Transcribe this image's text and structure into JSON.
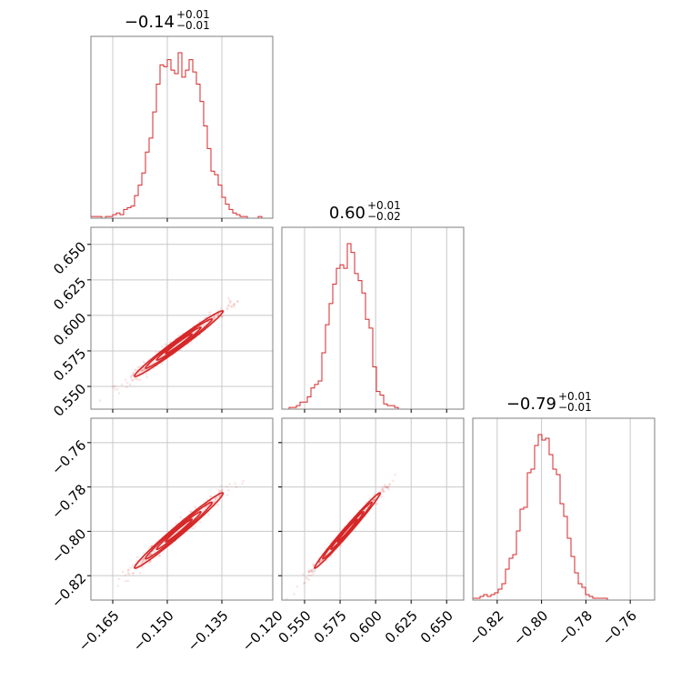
{
  "chart_data": {
    "type": "corner",
    "parameters": [
      {
        "title": {
          "value": "−0.14",
          "upper": "+0.01",
          "lower": "−0.01"
        },
        "range": [
          -0.171,
          -0.121
        ],
        "ticks": [
          -0.165,
          -0.15,
          -0.135,
          -0.12
        ],
        "tick_labels": [
          "−0.165",
          "−0.150",
          "−0.135",
          "−0.120"
        ],
        "histogram": {
          "bin_start": -0.171,
          "bin_width": 0.001,
          "counts": [
            1,
            1,
            1,
            0,
            1,
            1,
            2,
            3,
            2,
            5,
            6,
            7,
            13,
            19,
            26,
            38,
            46,
            61,
            77,
            88,
            87,
            91,
            85,
            83,
            95,
            81,
            85,
            91,
            84,
            77,
            67,
            53,
            40,
            27,
            25,
            19,
            12,
            8,
            5,
            3,
            2,
            1,
            1,
            0,
            0,
            0,
            1,
            0,
            0,
            0
          ]
        }
      },
      {
        "title": {
          "value": "0.60",
          "upper": "+0.01",
          "lower": "−0.02"
        },
        "range": [
          0.534,
          0.662
        ],
        "ticks": [
          0.55,
          0.575,
          0.6,
          0.625,
          0.65
        ],
        "tick_labels": [
          "0.550",
          "0.575",
          "0.600",
          "0.625",
          "0.650"
        ],
        "histogram": {
          "bin_start": 0.534,
          "bin_width": 0.00256,
          "counts": [
            0,
            0,
            1,
            1,
            2,
            4,
            4,
            7,
            12,
            14,
            16,
            32,
            48,
            60,
            71,
            80,
            82,
            80,
            94,
            89,
            77,
            73,
            66,
            51,
            46,
            24,
            10,
            8,
            3,
            2,
            2,
            1,
            0,
            0,
            0,
            0,
            0,
            0,
            0,
            0,
            0,
            0,
            0,
            0,
            0,
            0,
            0,
            0,
            0,
            0
          ]
        }
      },
      {
        "title": {
          "value": "−0.79",
          "upper": "+0.01",
          "lower": "−0.01"
        },
        "range": [
          -0.831,
          -0.749
        ],
        "ticks": [
          -0.82,
          -0.8,
          -0.78,
          -0.76
        ],
        "tick_labels": [
          "−0.82",
          "−0.80",
          "−0.78",
          "−0.76"
        ],
        "histogram": {
          "bin_start": -0.831,
          "bin_width": 0.00164,
          "counts": [
            1,
            1,
            2,
            3,
            2,
            3,
            4,
            6,
            9,
            17,
            23,
            25,
            38,
            50,
            51,
            70,
            72,
            85,
            91,
            88,
            89,
            80,
            72,
            69,
            53,
            46,
            34,
            24,
            15,
            9,
            7,
            3,
            2,
            1,
            1,
            1,
            1,
            0,
            0,
            0,
            0,
            0,
            0,
            0,
            0,
            0,
            0,
            0,
            0,
            0
          ]
        }
      }
    ],
    "correlations": {
      "0-1": 0.985,
      "0-2": 0.985,
      "1-2": 0.99
    },
    "grid": true,
    "color": "#d62728"
  }
}
